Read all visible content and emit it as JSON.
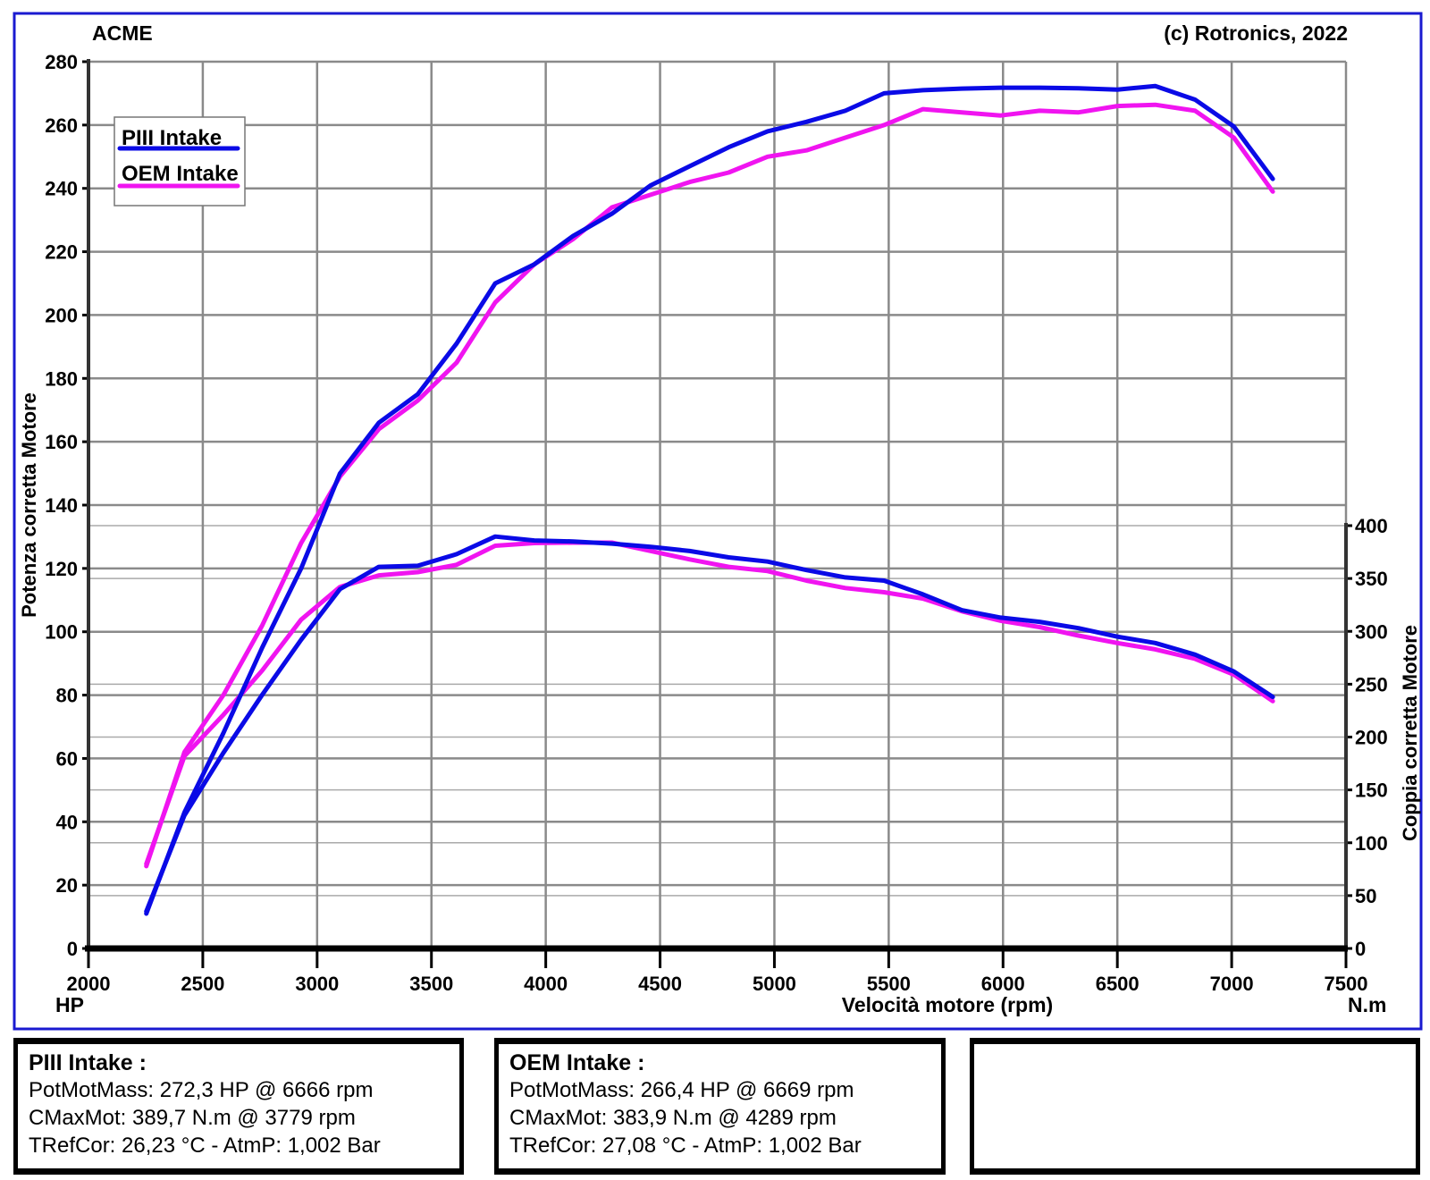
{
  "header": {
    "brand": "ACME",
    "copyright": "(c) Rotronics, 2022"
  },
  "colors": {
    "piii": "#0a0ae6",
    "oem": "#f014f0",
    "frame": "#1a1ad0",
    "grid": "#8a8a8a"
  },
  "chart_data": {
    "type": "line",
    "xlabel": "Velocità motore (rpm)",
    "ylabel_left": "Potenza corretta Motore",
    "ylabel_right": "Coppia corretta Motore",
    "unit_left": "HP",
    "unit_right": "N.m",
    "xlim": [
      2000,
      7500
    ],
    "ylim_left": [
      0,
      280
    ],
    "ylim_right": [
      0,
      400
    ],
    "x_ticks": [
      "2000",
      "2500",
      "3000",
      "3500",
      "4000",
      "4500",
      "5000",
      "5500",
      "6000",
      "6500",
      "7000",
      "7500"
    ],
    "y_left_ticks": [
      "0",
      "20",
      "40",
      "60",
      "80",
      "100",
      "120",
      "140",
      "160",
      "180",
      "200",
      "220",
      "240",
      "260",
      "280"
    ],
    "y_right_ticks": [
      "0",
      "50",
      "100",
      "150",
      "200",
      "250",
      "300",
      "350",
      "400"
    ],
    "grid": true,
    "legend": {
      "placement": "top-left",
      "entries": [
        "PIII Intake",
        "OEM Intake"
      ]
    },
    "x": [
      2253,
      2420,
      2590,
      2760,
      2930,
      3100,
      3270,
      3440,
      3610,
      3779,
      3950,
      4120,
      4289,
      4460,
      4630,
      4800,
      4970,
      5140,
      5310,
      5480,
      5650,
      5820,
      5990,
      6160,
      6330,
      6500,
      6666,
      6840,
      7010,
      7180
    ],
    "series": [
      {
        "name": "PIII Intake",
        "quantity": "power",
        "axis": "left",
        "values": [
          11,
          43,
          68,
          95,
          120,
          150,
          166,
          175,
          191,
          210,
          216,
          225,
          232,
          241,
          247,
          253,
          258,
          261,
          264.5,
          270,
          271,
          271.5,
          271.8,
          271.8,
          271.6,
          271.2,
          272.3,
          268,
          259.5,
          243
        ]
      },
      {
        "name": "OEM Intake",
        "quantity": "power",
        "axis": "left",
        "values": [
          26,
          62,
          80,
          102,
          128,
          149,
          164,
          173,
          185,
          204,
          216,
          224,
          234,
          238,
          242,
          245,
          250,
          252,
          256,
          260,
          265,
          264,
          263,
          264.5,
          264,
          266,
          266.4,
          264.5,
          256,
          239
        ]
      },
      {
        "name": "PIII Intake",
        "quantity": "torque",
        "axis": "right",
        "values": [
          35,
          126,
          185,
          240,
          292,
          340,
          361,
          362,
          373,
          389.7,
          386,
          385,
          383,
          380,
          376,
          370,
          366,
          358,
          351,
          348,
          335,
          320,
          313,
          309,
          303,
          295,
          289,
          278,
          262,
          238
        ]
      },
      {
        "name": "OEM Intake",
        "quantity": "torque",
        "axis": "right",
        "values": [
          80,
          182,
          221,
          263,
          311,
          342,
          353,
          356,
          363,
          381,
          383.5,
          383.9,
          383.9,
          376,
          368,
          361,
          357,
          348,
          341,
          337,
          331,
          319,
          310,
          304,
          296,
          289,
          283,
          274,
          259,
          234
        ]
      }
    ]
  },
  "info": [
    {
      "title": "PIII Intake :",
      "lines": [
        "PotMotMass: 272,3 HP @ 6666 rpm",
        "CMaxMot: 389,7 N.m @ 3779 rpm",
        "TRefCor: 26,23 °C - AtmP: 1,002 Bar"
      ]
    },
    {
      "title": "OEM Intake :",
      "lines": [
        "PotMotMass: 266,4 HP @ 6669 rpm",
        "CMaxMot: 383,9 N.m @ 4289 rpm",
        "TRefCor: 27,08 °C - AtmP: 1,002 Bar"
      ]
    }
  ]
}
